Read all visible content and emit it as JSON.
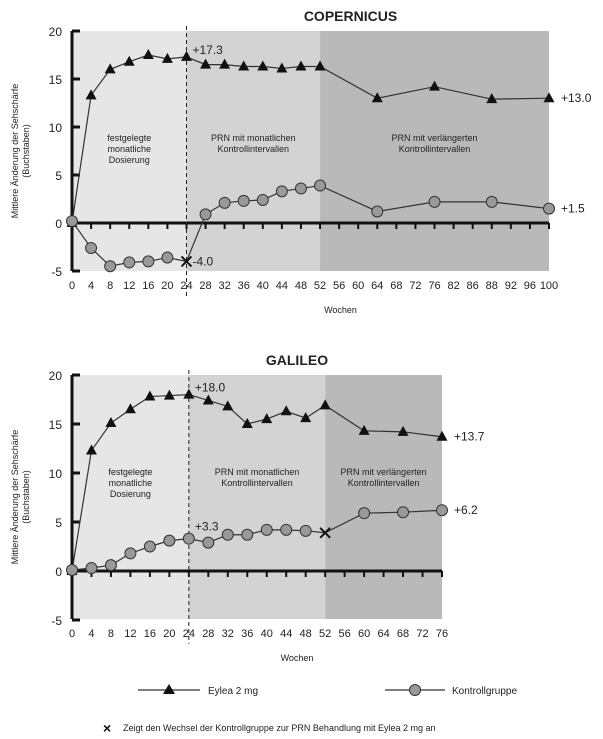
{
  "chart_data": [
    {
      "type": "line",
      "title": "COPERNICUS",
      "xlabel": "Wochen",
      "ylabel": "Mittlere Änderung der Sehschärfe (Buchstaben)",
      "ylim": [
        -5,
        20
      ],
      "yticks": [
        "20",
        "15",
        "10",
        "5",
        "0",
        "-5"
      ],
      "x": [
        "0",
        "4",
        "8",
        "12",
        "16",
        "20",
        "24",
        "28",
        "32",
        "36",
        "40",
        "44",
        "48",
        "52",
        "56",
        "60",
        "64",
        "68",
        "72",
        "76",
        "82",
        "86",
        "88",
        "92",
        "96",
        "100"
      ],
      "phases": [
        {
          "label": "festgelegte monatliche Dosierung",
          "from": "0",
          "to": "24",
          "color": "#e6e6e6"
        },
        {
          "label": "PRN mit monatlichen Kontrollintervallen",
          "from": "24",
          "to": "52",
          "color": "#d3d3d3"
        },
        {
          "label": "PRN mit verlängerten Kontrollintervallen",
          "from": "52",
          "to": "100",
          "color": "#b9b9b9"
        }
      ],
      "series": [
        {
          "name": "Eylea 2 mg",
          "marker": "triangle",
          "points": [
            [
              "0",
              0
            ],
            [
              "4",
              13.3
            ],
            [
              "8",
              16.0
            ],
            [
              "12",
              16.8
            ],
            [
              "16",
              17.5
            ],
            [
              "20",
              17.1
            ],
            [
              "24",
              17.3
            ],
            [
              "28",
              16.5
            ],
            [
              "32",
              16.5
            ],
            [
              "36",
              16.3
            ],
            [
              "40",
              16.3
            ],
            [
              "44",
              16.1
            ],
            [
              "48",
              16.3
            ],
            [
              "52",
              16.3
            ],
            [
              "64",
              13.0
            ],
            [
              "76",
              14.2
            ],
            [
              "88",
              12.9
            ],
            [
              "100",
              13.0
            ]
          ]
        },
        {
          "name": "Kontrollgruppe",
          "marker": "circle",
          "switch_at": "24",
          "points": [
            [
              "0",
              0.2
            ],
            [
              "4",
              -2.6
            ],
            [
              "8",
              -4.5
            ],
            [
              "12",
              -4.1
            ],
            [
              "16",
              -4.0
            ],
            [
              "20",
              -3.6
            ],
            [
              "24",
              -4.0
            ],
            [
              "28",
              0.9
            ],
            [
              "32",
              2.1
            ],
            [
              "36",
              2.3
            ],
            [
              "40",
              2.4
            ],
            [
              "44",
              3.3
            ],
            [
              "48",
              3.6
            ],
            [
              "52",
              3.9
            ],
            [
              "64",
              1.2
            ],
            [
              "76",
              2.2
            ],
            [
              "88",
              2.2
            ],
            [
              "100",
              1.5
            ]
          ]
        }
      ],
      "annotations": [
        {
          "text": "+17.3",
          "at": "24",
          "y": 17.3
        },
        {
          "text": "-4.0",
          "at": "24",
          "y": -4.0
        },
        {
          "text": "+13.0",
          "at": "100",
          "y": 13.0
        },
        {
          "text": "+1.5",
          "at": "100",
          "y": 1.5
        }
      ]
    },
    {
      "type": "line",
      "title": "GALILEO",
      "xlabel": "Wochen",
      "ylabel": "Mittlere Änderung der Sehschärfe (Buchstaben)",
      "ylim": [
        -5,
        20
      ],
      "yticks": [
        "20",
        "15",
        "10",
        "5",
        "0",
        "-5"
      ],
      "x": [
        "0",
        "4",
        "8",
        "12",
        "16",
        "20",
        "24",
        "28",
        "32",
        "36",
        "40",
        "44",
        "48",
        "52",
        "56",
        "60",
        "64",
        "68",
        "72",
        "76"
      ],
      "phases": [
        {
          "label": "festgelegte monatliche Dosierung",
          "from": "0",
          "to": "24",
          "color": "#e6e6e6"
        },
        {
          "label": "PRN mit monatlichen Kontrollintervallen",
          "from": "24",
          "to": "52",
          "color": "#d3d3d3"
        },
        {
          "label": "PRN mit verlängerten Kontrollintervallen",
          "from": "52",
          "to": "76",
          "color": "#b9b9b9"
        }
      ],
      "series": [
        {
          "name": "Eylea 2 mg",
          "marker": "triangle",
          "points": [
            [
              "0",
              0
            ],
            [
              "4",
              12.3
            ],
            [
              "8",
              15.1
            ],
            [
              "12",
              16.5
            ],
            [
              "16",
              17.8
            ],
            [
              "20",
              17.9
            ],
            [
              "24",
              18.0
            ],
            [
              "28",
              17.4
            ],
            [
              "32",
              16.8
            ],
            [
              "36",
              15.0
            ],
            [
              "40",
              15.5
            ],
            [
              "44",
              16.3
            ],
            [
              "48",
              15.6
            ],
            [
              "52",
              16.9
            ],
            [
              "60",
              14.3
            ],
            [
              "68",
              14.2
            ],
            [
              "76",
              13.7
            ]
          ]
        },
        {
          "name": "Kontrollgruppe",
          "marker": "circle",
          "switch_at": "52",
          "points": [
            [
              "0",
              0.1
            ],
            [
              "4",
              0.3
            ],
            [
              "8",
              0.6
            ],
            [
              "12",
              1.8
            ],
            [
              "16",
              2.5
            ],
            [
              "20",
              3.1
            ],
            [
              "24",
              3.3
            ],
            [
              "28",
              2.9
            ],
            [
              "32",
              3.7
            ],
            [
              "36",
              3.7
            ],
            [
              "40",
              4.2
            ],
            [
              "44",
              4.2
            ],
            [
              "48",
              4.1
            ],
            [
              "52",
              3.9
            ],
            [
              "60",
              5.9
            ],
            [
              "68",
              6.0
            ],
            [
              "76",
              6.2
            ]
          ]
        }
      ],
      "annotations": [
        {
          "text": "+18.0",
          "at": "24",
          "y": 18.0
        },
        {
          "text": "+3.3",
          "at": "24",
          "y": 3.3
        },
        {
          "text": "+13.7",
          "at": "76",
          "y": 13.7
        },
        {
          "text": "+6.2",
          "at": "76",
          "y": 6.2
        }
      ]
    }
  ],
  "legend": {
    "items": [
      {
        "label": "Eylea 2 mg",
        "marker": "triangle"
      },
      {
        "label": "Kontrollgruppe",
        "marker": "circle"
      }
    ],
    "note": "Zeigt den Wechsel der Kontrollgruppe zur PRN Behandlung mit Eylea 2 mg an"
  }
}
